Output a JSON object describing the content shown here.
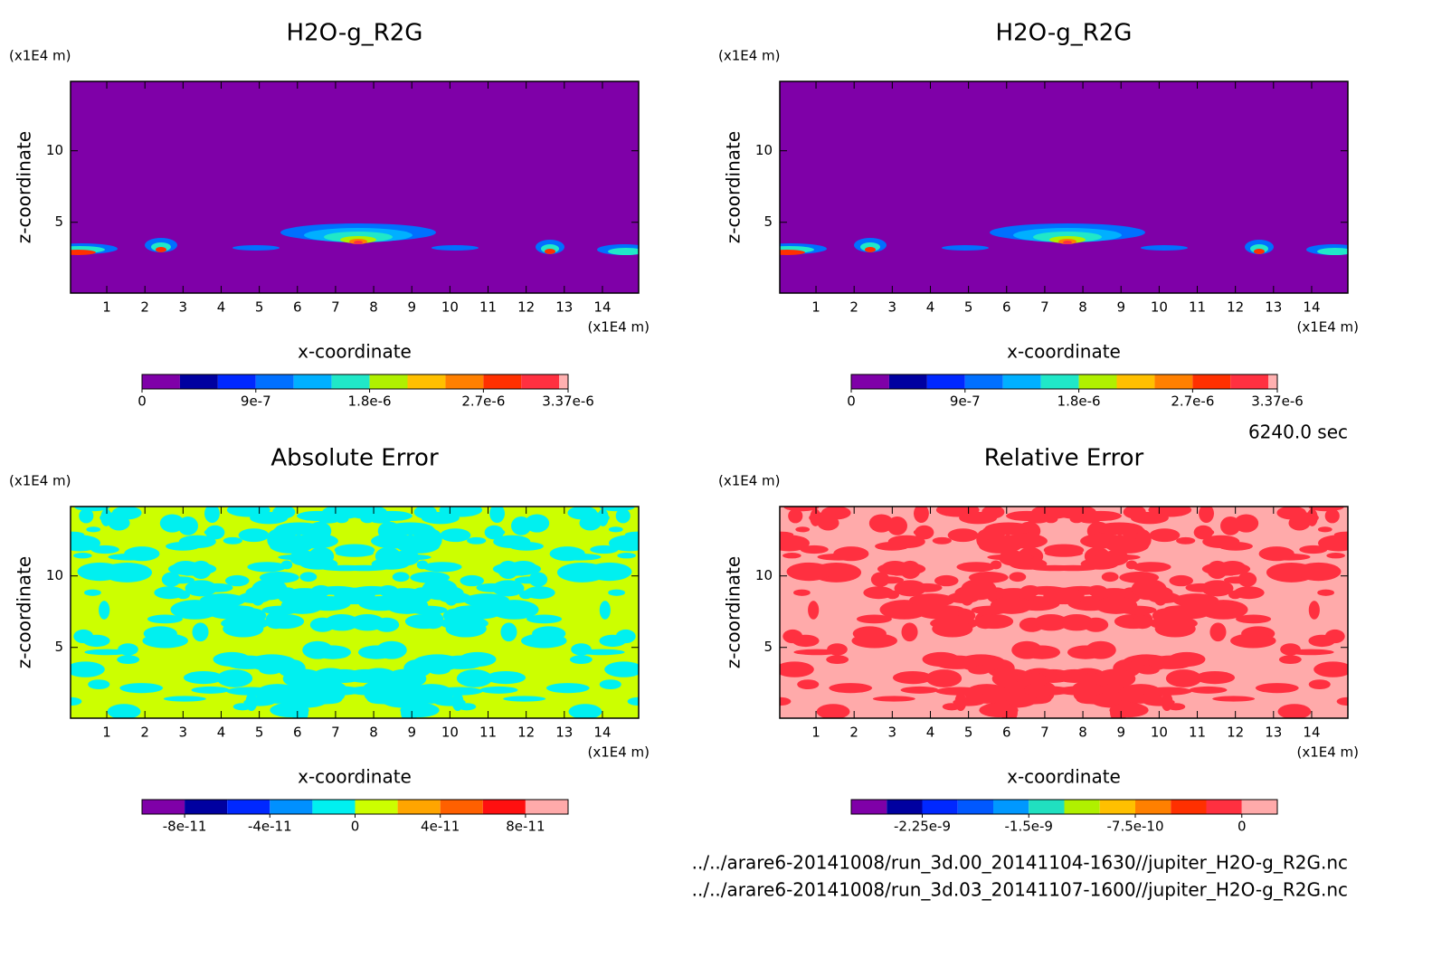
{
  "chart_data": [
    {
      "type": "contour",
      "title": "H2O-g_R2G",
      "xlabel": "x-coordinate",
      "ylabel": "z-coordinate",
      "x_unit": "(x1E4 m)",
      "y_unit": "(x1E4 m)",
      "xlim": [
        0.05,
        14.95
      ],
      "ylim": [
        0.05,
        14.85
      ],
      "xticks": [
        1,
        2,
        3,
        4,
        5,
        6,
        7,
        8,
        9,
        10,
        11,
        12,
        13,
        14
      ],
      "yticks": [
        5,
        10
      ],
      "colorbar": {
        "levels": [
          0,
          3e-07,
          6e-07,
          9e-07,
          1.2e-06,
          1.5e-06,
          1.8e-06,
          2.1e-06,
          2.4e-06,
          2.7e-06,
          3e-06,
          3.3e-06,
          3.37e-06
        ],
        "colors": [
          "#7f00a8",
          "#0000a0",
          "#0028ff",
          "#0070ff",
          "#00b0ff",
          "#20e8c8",
          "#b0f000",
          "#ffc000",
          "#ff8000",
          "#ff3000",
          "#ff3040",
          "#ffb0b0"
        ],
        "ticks": [
          0,
          {
            "value": 9e-07,
            "label": "9e-7"
          },
          {
            "value": 1.8e-06,
            "label": "1.8e-6"
          },
          {
            "value": 2.7e-06,
            "label": "2.7e-6"
          },
          {
            "value": 3.37e-06,
            "label": "3.37e-6"
          }
        ]
      }
    },
    {
      "type": "contour",
      "title": "H2O-g_R2G",
      "xlabel": "x-coordinate",
      "ylabel": "z-coordinate",
      "x_unit": "(x1E4 m)",
      "y_unit": "(x1E4 m)",
      "xlim": [
        0.05,
        14.95
      ],
      "ylim": [
        0.05,
        14.85
      ],
      "xticks": [
        1,
        2,
        3,
        4,
        5,
        6,
        7,
        8,
        9,
        10,
        11,
        12,
        13,
        14
      ],
      "yticks": [
        5,
        10
      ],
      "colorbar": {
        "levels": [
          0,
          3e-07,
          6e-07,
          9e-07,
          1.2e-06,
          1.5e-06,
          1.8e-06,
          2.1e-06,
          2.4e-06,
          2.7e-06,
          3e-06,
          3.3e-06,
          3.37e-06
        ],
        "colors": [
          "#7f00a8",
          "#0000a0",
          "#0028ff",
          "#0070ff",
          "#00b0ff",
          "#20e8c8",
          "#b0f000",
          "#ffc000",
          "#ff8000",
          "#ff3000",
          "#ff3040",
          "#ffb0b0"
        ],
        "ticks": [
          0,
          {
            "value": 9e-07,
            "label": "9e-7"
          },
          {
            "value": 1.8e-06,
            "label": "1.8e-6"
          },
          {
            "value": 2.7e-06,
            "label": "2.7e-6"
          },
          {
            "value": 3.37e-06,
            "label": "3.37e-6"
          }
        ]
      }
    },
    {
      "type": "contour",
      "title": "Absolute Error",
      "xlabel": "x-coordinate",
      "ylabel": "z-coordinate",
      "x_unit": "(x1E4 m)",
      "y_unit": "(x1E4 m)",
      "xlim": [
        0.05,
        14.95
      ],
      "ylim": [
        0.05,
        14.85
      ],
      "xticks": [
        1,
        2,
        3,
        4,
        5,
        6,
        7,
        8,
        9,
        10,
        11,
        12,
        13,
        14
      ],
      "yticks": [
        5,
        10
      ],
      "colorbar": {
        "levels": [
          -1e-10,
          -8e-11,
          -6e-11,
          -4e-11,
          -2e-11,
          0,
          2e-11,
          4e-11,
          6e-11,
          8e-11,
          1e-10
        ],
        "colors": [
          "#7f00a8",
          "#0000a0",
          "#0028ff",
          "#0090ff",
          "#00f0f0",
          "#ccff00",
          "#ffa500",
          "#ff6000",
          "#ff1010",
          "#ffaaaa"
        ],
        "ticks": [
          -8e-11,
          -4e-11,
          0,
          4e-11,
          8e-11
        ]
      }
    },
    {
      "type": "contour",
      "title": "Relative Error",
      "xlabel": "x-coordinate",
      "ylabel": "z-coordinate",
      "x_unit": "(x1E4 m)",
      "y_unit": "(x1E4 m)",
      "xlim": [
        0.05,
        14.95
      ],
      "ylim": [
        0.05,
        14.85
      ],
      "xticks": [
        1,
        2,
        3,
        4,
        5,
        6,
        7,
        8,
        9,
        10,
        11,
        12,
        13,
        14
      ],
      "yticks": [
        5,
        10
      ],
      "colorbar": {
        "levels": [
          -2.75e-09,
          -2.5e-09,
          -2.25e-09,
          -2e-09,
          -1.75e-09,
          -1.5e-09,
          -1.25e-09,
          -1e-09,
          -7.5e-10,
          -5e-10,
          -2.5e-10,
          0,
          2.5e-10
        ],
        "colors": [
          "#7f00a8",
          "#0000a0",
          "#0028ff",
          "#0058ff",
          "#0098ff",
          "#20e0c0",
          "#b0f000",
          "#ffc000",
          "#ff8000",
          "#ff3000",
          "#ff3040",
          "#ffaaaa"
        ],
        "ticks": [
          {
            "value": -2.25e-09,
            "label": "-2.25e-9"
          },
          {
            "value": -1.5e-09,
            "label": "-1.5e-9"
          },
          {
            "value": -7.5e-10,
            "label": "-7.5e-10"
          },
          0
        ]
      }
    }
  ],
  "time": "6240.0 sec",
  "files": [
    "../../arare6-20141008/run_3d.00_20141104-1630//jupiter_H2O-g_R2G.nc",
    "../../arare6-20141008/run_3d.03_20141107-1600//jupiter_H2O-g_R2G.nc"
  ]
}
